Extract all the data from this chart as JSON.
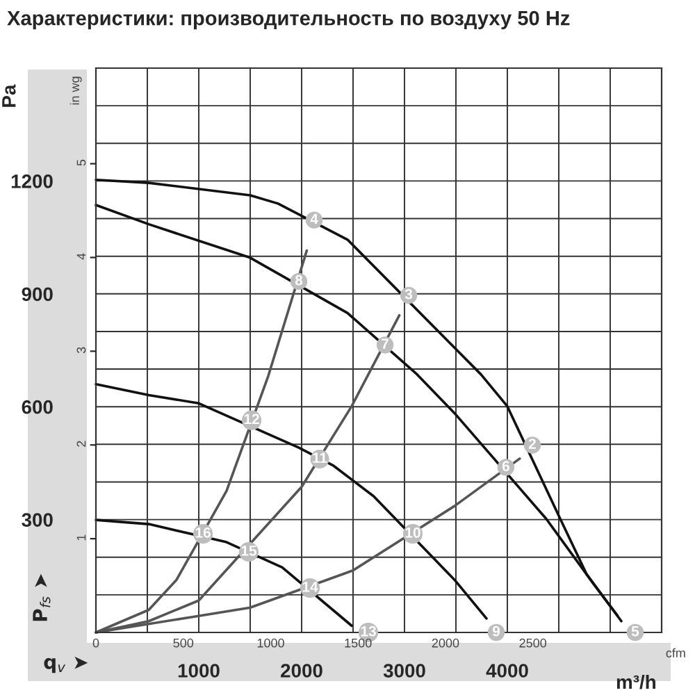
{
  "chart_data": {
    "type": "line",
    "title": "Характеристики: производительность по воздуху 50 Hz",
    "xlabel": "m³/h",
    "ylabel": "Pa",
    "x2label": "cfm",
    "y2label": "in wg",
    "xlim": [
      0,
      5500
    ],
    "xticks": [
      {
        "value": 0,
        "label": null
      },
      {
        "value": 500,
        "label": null
      },
      1000,
      {
        "value": 1500,
        "label": null
      },
      2000,
      {
        "value": 2500,
        "label": null
      },
      3000,
      {
        "value": 3500,
        "label": null
      },
      4000,
      {
        "value": 4500,
        "label": null
      },
      {
        "value": 5000,
        "label": null
      },
      {
        "value": 5500,
        "label": null
      }
    ],
    "ylim": [
      0,
      1500
    ],
    "yticks": [
      {
        "value": 0,
        "label": null
      },
      {
        "value": 100,
        "label": null
      },
      {
        "value": 200,
        "label": null
      },
      300,
      {
        "value": 400,
        "label": null
      },
      {
        "value": 500,
        "label": null
      },
      600,
      {
        "value": 700,
        "label": null
      },
      {
        "value": 800,
        "label": null
      },
      900,
      {
        "value": 1000,
        "label": null
      },
      {
        "value": 1100,
        "label": null
      },
      1200,
      {
        "value": 1300,
        "label": null
      },
      {
        "value": 1400,
        "label": null
      },
      {
        "value": 1500,
        "label": null
      }
    ],
    "x2lim": [
      0,
      3237
    ],
    "x2ticks": [
      0,
      500,
      1000,
      1500,
      2000,
      2500
    ],
    "y2lim": [
      0,
      6.02
    ],
    "y2ticks": [
      1,
      2,
      3,
      4,
      5
    ],
    "grid": true,
    "series": [
      {
        "color": "#111111",
        "x": [
          0,
          514,
          1500,
          1770,
          2446,
          3743,
          4000,
          4514,
          4770,
          5108
        ],
        "values": [
          1203,
          1195,
          1162,
          1140,
          1044,
          686,
          601,
          302,
          155,
          30
        ]
      },
      {
        "color": "#111111",
        "x": [
          0,
          514,
          1500,
          2446,
          3122,
          3486,
          4378,
          4838,
          5070
        ],
        "values": [
          1136,
          1085,
          996,
          849,
          686,
          583,
          302,
          129,
          45
        ]
      },
      {
        "color": "#111111",
        "x": [
          0,
          514,
          1000,
          1973,
          2311,
          2700,
          3486,
          3797
        ],
        "values": [
          660,
          631,
          609,
          491,
          443,
          362,
          140,
          37
        ]
      },
      {
        "color": "#111111",
        "x": [
          0,
          514,
          1270,
          1811,
          2486
        ],
        "values": [
          299,
          288,
          240,
          173,
          18
        ]
      },
      {
        "color": "#555555",
        "x": [
          0,
          514,
          784,
          1270,
          1676,
          2050
        ],
        "values": [
          0,
          60,
          140,
          376,
          682,
          1015
        ]
      },
      {
        "color": "#555555",
        "x": [
          0,
          514,
          1000,
          2000,
          2486,
          2950
        ],
        "values": [
          0,
          30,
          85,
          387,
          601,
          843
        ]
      },
      {
        "color": "#555555",
        "x": [
          0,
          1000,
          1500,
          2500,
          3486,
          4120
        ],
        "values": [
          0,
          44,
          66,
          165,
          336,
          462
        ]
      }
    ],
    "annotations": [
      "q$_{v}$ ➤",
      "P$_{fs}$ ➤",
      {
        "text": "2",
        "x": 4243,
        "y": 498
      },
      {
        "text": "3",
        "x": 3041,
        "y": 896
      },
      {
        "text": "4",
        "x": 2122,
        "y": 1096
      },
      {
        "text": "5",
        "x": 5243,
        "y": 0
      },
      {
        "text": "6",
        "x": 3986,
        "y": 439
      },
      {
        "text": "7",
        "x": 2811,
        "y": 764
      },
      {
        "text": "8",
        "x": 1973,
        "y": 933
      },
      {
        "text": "9",
        "x": 3892,
        "y": 0
      },
      {
        "text": "10",
        "x": 3081,
        "y": 262
      },
      {
        "text": "11",
        "x": 2176,
        "y": 461
      },
      {
        "text": "12",
        "x": 1514,
        "y": 564
      },
      {
        "text": "13",
        "x": 2649,
        "y": 0
      },
      {
        "text": "14",
        "x": 2081,
        "y": 118
      },
      {
        "text": "15",
        "x": 1486,
        "y": 214
      },
      {
        "text": "16",
        "x": 1041,
        "y": 262
      }
    ]
  }
}
